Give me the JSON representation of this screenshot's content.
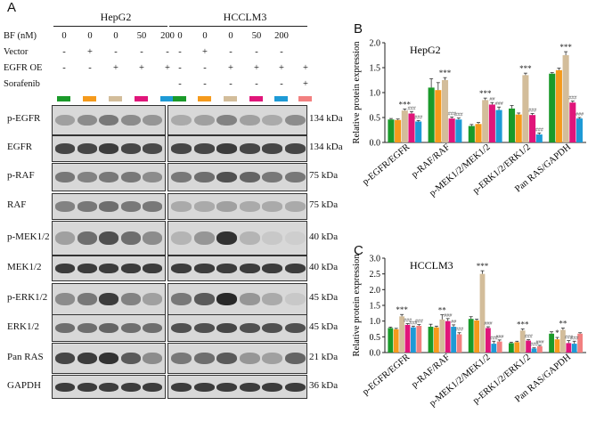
{
  "panel_labels": {
    "a": "A",
    "b": "B",
    "c": "C"
  },
  "cells": [
    "HepG2",
    "HCCLM3"
  ],
  "conditions": {
    "rows": [
      {
        "label": "BF (nM)",
        "left": [
          "0",
          "0",
          "0",
          "50",
          "200"
        ],
        "right": [
          "0",
          "0",
          "0",
          "50",
          "200",
          ""
        ]
      },
      {
        "label": "Vector",
        "left": [
          "-",
          "+",
          "-",
          "-",
          "-"
        ],
        "right": [
          "-",
          "+",
          "-",
          "-",
          "-",
          ""
        ]
      },
      {
        "label": "EGFR OE",
        "left": [
          "-",
          "-",
          "+",
          "+",
          "+"
        ],
        "right": [
          "-",
          "-",
          "+",
          "+",
          "+",
          "+"
        ]
      },
      {
        "label": "Sorafenib",
        "left": [
          "",
          "",
          "",
          "",
          ""
        ],
        "right": [
          "-",
          "-",
          "-",
          "-",
          "-",
          "+"
        ]
      }
    ]
  },
  "colors": {
    "c1": "#1a9a2a",
    "c2": "#f59a1c",
    "c3": "#d3bd9a",
    "c4": "#e0157a",
    "c5": "#1e9ad6",
    "c6": "#f28080"
  },
  "blots": [
    {
      "label": "p-EGFR",
      "kda": "134 kDa"
    },
    {
      "label": "EGFR",
      "kda": "134 kDa"
    },
    {
      "label": "p-RAF",
      "kda": "75 kDa"
    },
    {
      "label": "RAF",
      "kda": "75 kDa"
    },
    {
      "label": "p-MEK1/2",
      "kda": "40 kDa"
    },
    {
      "label": "MEK1/2",
      "kda": "40 kDa"
    },
    {
      "label": "p-ERK1/2",
      "kda": "45 kDa"
    },
    {
      "label": "ERK1/2",
      "kda": "45 kDa"
    },
    {
      "label": "Pan RAS",
      "kda": "21 kDa"
    },
    {
      "label": "GAPDH",
      "kda": "36 kDa"
    }
  ],
  "chart_data": [
    {
      "type": "bar",
      "title": "HepG2",
      "ylabel": "Relative protein expression",
      "ylim": [
        0,
        2.0
      ],
      "yticks": [
        "0.0",
        "0.5",
        "1.0",
        "1.5",
        "2.0"
      ],
      "categories": [
        "p-EGFR/EGFR",
        "p-RAF/RAF",
        "p-MEK1/2/MEK1/2",
        "p-ERK1/2/ERK1/2",
        "Pan RAS/GAPDH"
      ],
      "series": [
        {
          "values": [
            0.46,
            1.1,
            0.33,
            0.68,
            1.38
          ]
        },
        {
          "values": [
            0.45,
            1.05,
            0.37,
            0.56,
            1.45
          ]
        },
        {
          "values": [
            0.64,
            1.25,
            0.85,
            1.35,
            1.75
          ]
        },
        {
          "values": [
            0.58,
            0.48,
            0.76,
            0.55,
            0.8
          ]
        },
        {
          "values": [
            0.42,
            0.46,
            0.65,
            0.16,
            0.48
          ]
        }
      ],
      "errors": [
        [
          0.02,
          0.18,
          0.03,
          0.06,
          0.02
        ],
        [
          0.02,
          0.15,
          0.03,
          0.03,
          0.04
        ],
        [
          0.03,
          0.05,
          0.04,
          0.04,
          0.07
        ],
        [
          0.04,
          0.03,
          0.04,
          0.03,
          0.03
        ],
        [
          0.02,
          0.03,
          0.06,
          0.03,
          0.02
        ]
      ],
      "annotations": [
        {
          "group": 0,
          "bar": 2,
          "text": "***"
        },
        {
          "group": 0,
          "bar": 3,
          "text": "###"
        },
        {
          "group": 0,
          "bar": 4,
          "text": "###"
        },
        {
          "group": 1,
          "bar": 2,
          "text": "***"
        },
        {
          "group": 1,
          "bar": 3,
          "text": "###"
        },
        {
          "group": 1,
          "bar": 4,
          "text": "###"
        },
        {
          "group": 2,
          "bar": 2,
          "text": "***"
        },
        {
          "group": 2,
          "bar": 3,
          "text": "##"
        },
        {
          "group": 2,
          "bar": 4,
          "text": "###"
        },
        {
          "group": 3,
          "bar": 2,
          "text": "***"
        },
        {
          "group": 3,
          "bar": 3,
          "text": "###"
        },
        {
          "group": 3,
          "bar": 4,
          "text": "###"
        },
        {
          "group": 4,
          "bar": 2,
          "text": "***"
        },
        {
          "group": 4,
          "bar": 3,
          "text": "###"
        },
        {
          "group": 4,
          "bar": 4,
          "text": "###"
        }
      ]
    },
    {
      "type": "bar",
      "title": "HCCLM3",
      "ylabel": "Relative protein expression",
      "ylim": [
        0,
        3.0
      ],
      "yticks": [
        "0.0",
        "0.5",
        "1.0",
        "1.5",
        "2.0",
        "2.5",
        "3.0"
      ],
      "categories": [
        "p-EGFR/EGFR",
        "p-RAF/RAF",
        "p-MEK1/2/MEK1/2",
        "p-ERK1/2/ERK1/2",
        "Pan RAS/GAPDH"
      ],
      "series": [
        {
          "values": [
            0.78,
            0.82,
            1.07,
            0.3,
            0.6
          ]
        },
        {
          "values": [
            0.74,
            0.8,
            1.02,
            0.33,
            0.42
          ]
        },
        {
          "values": [
            1.15,
            1.05,
            2.5,
            0.7,
            0.72
          ]
        },
        {
          "values": [
            0.88,
            1.0,
            0.78,
            0.38,
            0.3
          ]
        },
        {
          "values": [
            0.8,
            0.82,
            0.28,
            0.13,
            0.28
          ]
        },
        {
          "values": [
            0.85,
            0.58,
            0.35,
            0.2,
            0.6
          ]
        }
      ],
      "errors": [
        [
          0.03,
          0.08,
          0.07,
          0.03,
          0.06
        ],
        [
          0.03,
          0.04,
          0.04,
          0.03,
          0.06
        ],
        [
          0.06,
          0.15,
          0.1,
          0.05,
          0.06
        ],
        [
          0.04,
          0.08,
          0.04,
          0.03,
          0.08
        ],
        [
          0.04,
          0.06,
          0.08,
          0.02,
          0.08
        ],
        [
          0.04,
          0.05,
          0.05,
          0.03,
          0.03
        ]
      ],
      "annotations": [
        {
          "group": 0,
          "bar": 2,
          "text": "***"
        },
        {
          "group": 0,
          "bar": 3,
          "text": "###"
        },
        {
          "group": 0,
          "bar": 4,
          "text": "###"
        },
        {
          "group": 0,
          "bar": 5,
          "text": "###"
        },
        {
          "group": 1,
          "bar": 2,
          "text": "**"
        },
        {
          "group": 1,
          "bar": 3,
          "text": "###"
        },
        {
          "group": 1,
          "bar": 4,
          "text": "##"
        },
        {
          "group": 1,
          "bar": 5,
          "text": "###"
        },
        {
          "group": 2,
          "bar": 2,
          "text": "***"
        },
        {
          "group": 2,
          "bar": 3,
          "text": "###"
        },
        {
          "group": 2,
          "bar": 4,
          "text": "###"
        },
        {
          "group": 2,
          "bar": 5,
          "text": "###"
        },
        {
          "group": 3,
          "bar": 2,
          "text": "***"
        },
        {
          "group": 3,
          "bar": 3,
          "text": "###"
        },
        {
          "group": 3,
          "bar": 4,
          "text": "###"
        },
        {
          "group": 3,
          "bar": 5,
          "text": "###"
        },
        {
          "group": 4,
          "bar": 1,
          "text": "*"
        },
        {
          "group": 4,
          "bar": 2,
          "text": "**"
        },
        {
          "group": 4,
          "bar": 3,
          "text": "###"
        },
        {
          "group": 4,
          "bar": 4,
          "text": "###"
        }
      ]
    }
  ]
}
